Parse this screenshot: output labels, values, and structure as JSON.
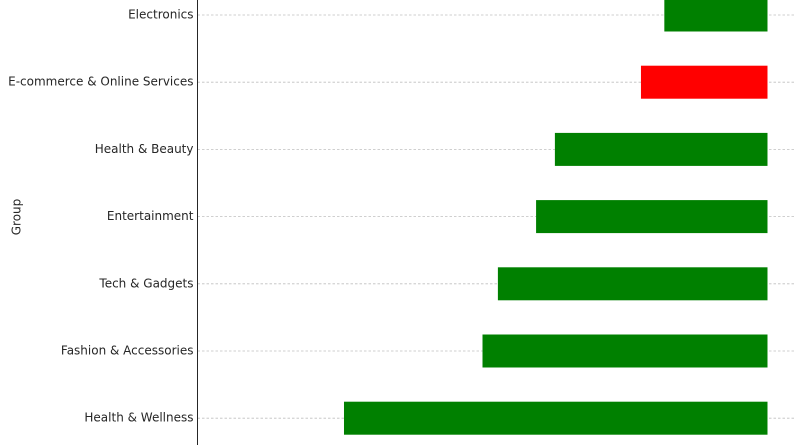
{
  "chart_data": {
    "type": "bar",
    "orientation": "horizontal",
    "ylabel": "Group",
    "xlabel": "",
    "title": "",
    "grid": "horizontal dashed",
    "categories": [
      "Electronics",
      "E-commerce & Online Services",
      "Health & Beauty",
      "Entertainment",
      "Tech & Gadgets",
      "Fashion & Accessories",
      "Health & Wellness"
    ],
    "starts": [
      -1.81,
      -2.22,
      -3.73,
      -4.06,
      -4.73,
      -5.0,
      -7.43
    ],
    "ends": [
      0,
      0,
      0,
      0,
      0,
      0,
      0
    ],
    "xlim": [
      -10.0,
      0.5
    ],
    "colors": [
      "#008000",
      "#ff0000",
      "#008000",
      "#008000",
      "#008000",
      "#008000",
      "#008000"
    ]
  }
}
